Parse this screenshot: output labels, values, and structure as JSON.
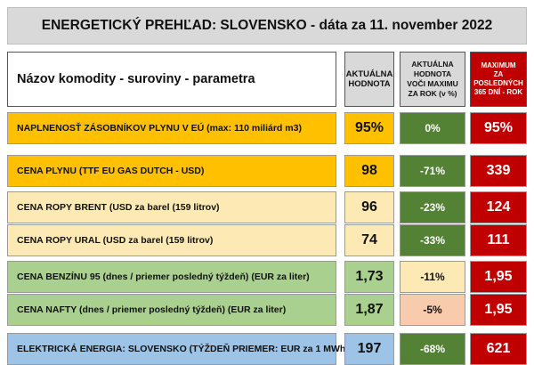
{
  "title": "ENERGETICKÝ PREHĽAD: SLOVENSKO - dáta za 11. november 2022",
  "headers": {
    "name": "Názov komodity - suroviny - parametra",
    "current": [
      "AKTUÁLNA",
      "HODNOTA"
    ],
    "pct": [
      "AKTUÁLNA",
      "HODNOTA",
      "VOČI MAXIMU",
      "ZA ROK (v %)"
    ],
    "max": [
      "MAXIMUM",
      "ZA",
      "POSLEDNÝCH",
      "365 DNÍ - ROK"
    ]
  },
  "rows": [
    {
      "name": "NAPLNENOSŤ ZÁSOBNÍKOV PLYNU V EÚ (max: 110 miliárd m3)",
      "current": "95%",
      "pct": "0%",
      "max": "95%"
    },
    {
      "name": "CENA PLYNU (TTF EU GAS DUTCH - USD)",
      "current": "98",
      "pct": "-71%",
      "max": "339"
    },
    {
      "name": "CENA ROPY BRENT (USD za barel (159 litrov)",
      "current": "96",
      "pct": "-23%",
      "max": "124"
    },
    {
      "name": "CENA ROPY URAL (USD za barel (159 litrov)",
      "current": "74",
      "pct": "-33%",
      "max": "111"
    },
    {
      "name": "CENA BENZÍNU 95 (dnes / priemer posledný týždeň) (EUR za liter)",
      "current": "1,73",
      "pct": "-11%",
      "max": "1,95"
    },
    {
      "name": "CENA NAFTY (dnes / priemer posledný týždeň) (EUR za liter)",
      "current": "1,87",
      "pct": "-5%",
      "max": "1,95"
    },
    {
      "name": "ELEKTRICKÁ ENERGIA: SLOVENSKO (TÝŽDEŇ PRIEMER: EUR za 1 MWh)",
      "current": "197",
      "pct": "-68%",
      "max": "621"
    }
  ],
  "colors": {
    "orange": "#ffc000",
    "peach": "#fde9b3",
    "green": "#a9d08e",
    "blue": "#9dc3e6",
    "dark_green": "#548235",
    "salmon": "#f8cbad",
    "red": "#c00000"
  }
}
